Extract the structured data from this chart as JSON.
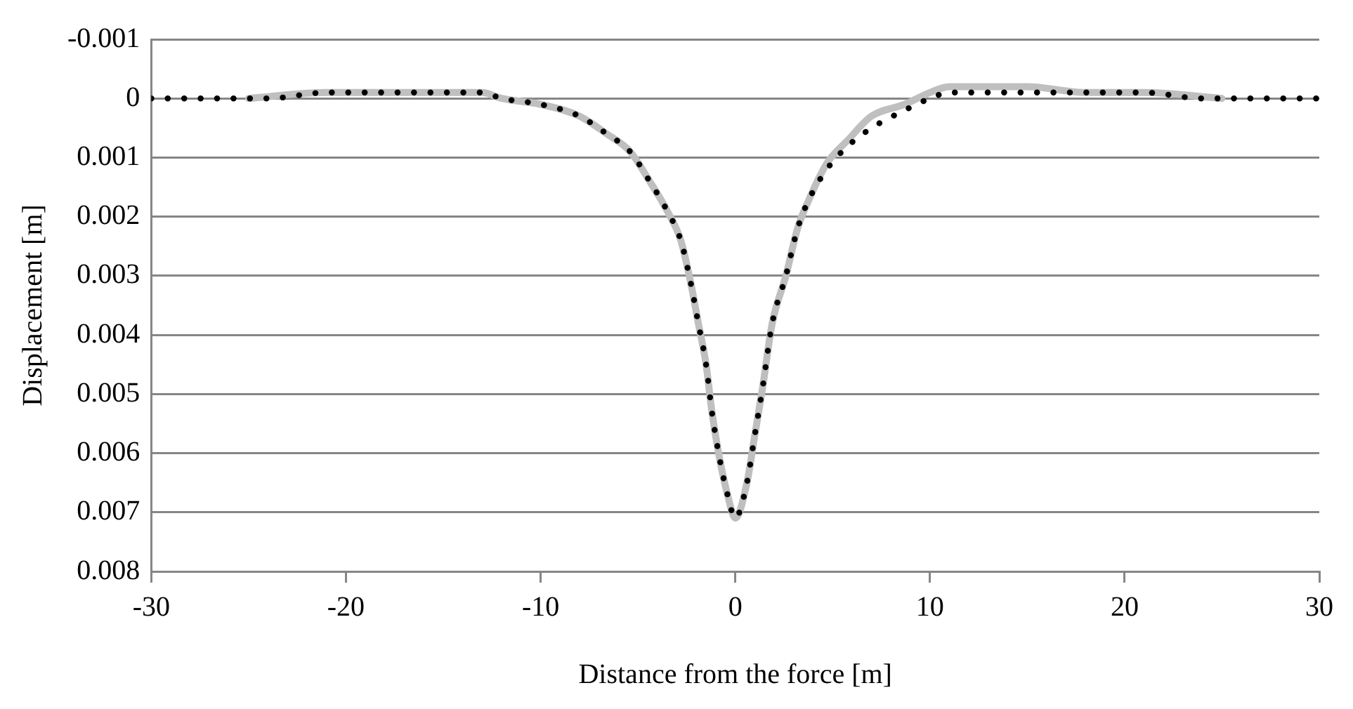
{
  "chart_data": {
    "type": "line",
    "xlabel": "Distance from the force [m]",
    "ylabel": "Displacement [m]",
    "xlim": [
      -30,
      30
    ],
    "xticks": [
      -30,
      -20,
      -10,
      0,
      10,
      20,
      30
    ],
    "ylim": [
      0.008,
      -0.001
    ],
    "yticks": [
      -0.001,
      0,
      0.001,
      0.002,
      0.003,
      0.004,
      0.005,
      0.006,
      0.007,
      0.008
    ],
    "grid": "y",
    "legend": false,
    "marker": "none",
    "series": [
      {
        "color": "#bfbfbf",
        "line_style": "solid",
        "x": [
          -25,
          -21,
          -18,
          -15,
          -13,
          -12,
          -10,
          -8,
          -6.6,
          -5.4,
          -4.4,
          -3.5,
          -2.8,
          -2.3,
          -1.9,
          -1.5,
          -1.2,
          -0.8,
          -0.4,
          0,
          0.6,
          1,
          1.4,
          1.9,
          2.6,
          3.2,
          3.8,
          4.7,
          5.8,
          7,
          8.7,
          10,
          11,
          13,
          15,
          18,
          21,
          25
        ],
        "values": [
          0,
          -0.0001,
          -0.0001,
          -0.0001,
          -0.0001,
          0,
          0.0001,
          0.0003,
          0.0006,
          0.0009,
          0.0014,
          0.0019,
          0.0024,
          0.0031,
          0.0038,
          0.0045,
          0.0053,
          0.0061,
          0.0067,
          0.0071,
          0.0065,
          0.0057,
          0.0049,
          0.0038,
          0.003,
          0.0022,
          0.0017,
          0.0011,
          0.0007,
          0.0003,
          0.0001,
          -0.0001,
          -0.0002,
          -0.0002,
          -0.0002,
          -0.0001,
          -0.0001,
          0
        ]
      },
      {
        "color": "#000000",
        "line_style": "dotted",
        "x": [
          -30,
          -27,
          -24,
          -21,
          -18,
          -15,
          -13,
          -12,
          -10,
          -8,
          -6.6,
          -5.4,
          -4.4,
          -3.5,
          -2.8,
          -2.3,
          -1.9,
          -1.5,
          -1.2,
          -0.8,
          -0.4,
          0,
          0.6,
          1,
          1.4,
          1.9,
          2.6,
          3.2,
          3.8,
          4.7,
          5.8,
          7,
          8.7,
          10,
          11,
          13,
          15,
          18,
          21,
          24,
          27,
          30
        ],
        "values": [
          0,
          0,
          0,
          -0.0001,
          -0.0001,
          -0.0001,
          -0.0001,
          0,
          0.0001,
          0.0003,
          0.0006,
          0.0009,
          0.0014,
          0.0019,
          0.0024,
          0.0031,
          0.0038,
          0.0045,
          0.0053,
          0.0061,
          0.0067,
          0.0071,
          0.0065,
          0.0057,
          0.0049,
          0.0038,
          0.003,
          0.0022,
          0.0017,
          0.0012,
          0.0008,
          0.0005,
          0.0002,
          0,
          -0.0001,
          -0.0001,
          -0.0001,
          -0.0001,
          -0.0001,
          0,
          0,
          0
        ]
      }
    ]
  }
}
